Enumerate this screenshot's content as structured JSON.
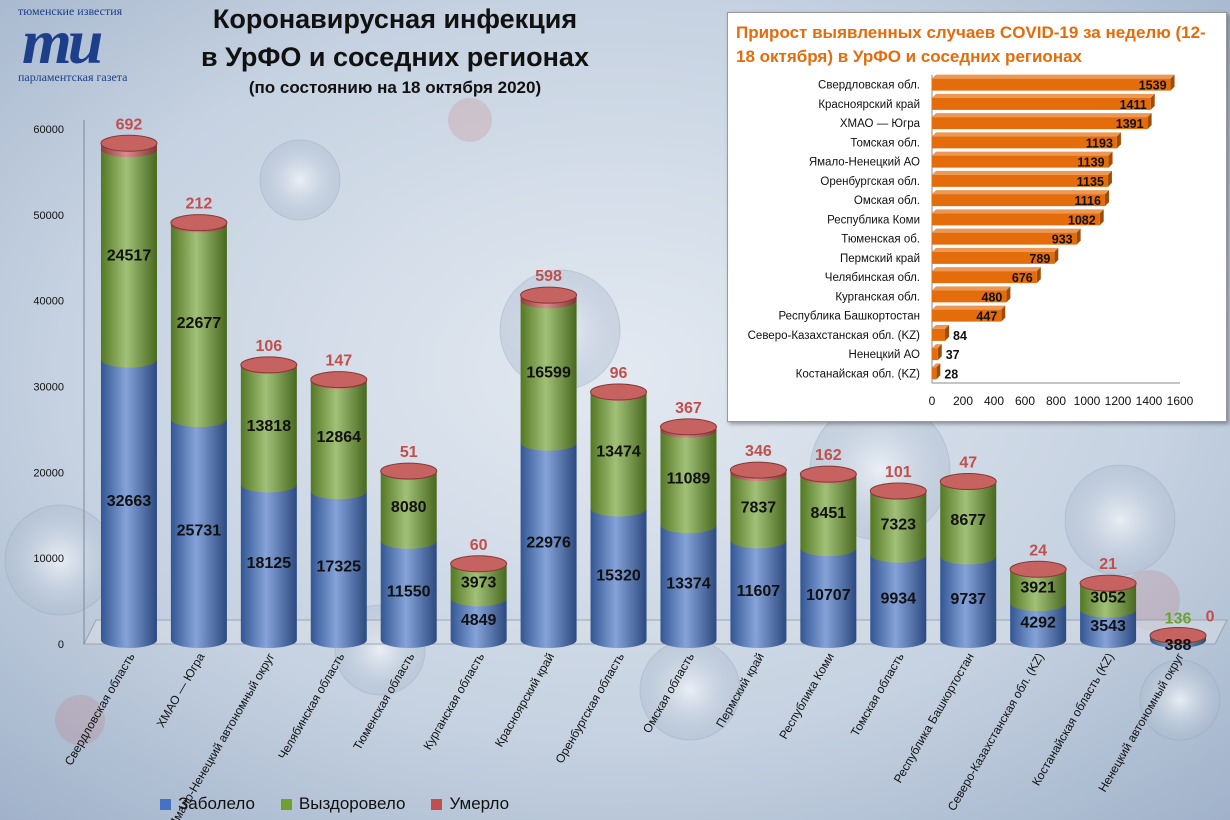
{
  "logo": {
    "top_text": "тюменские известия",
    "mark": "тu",
    "bottom_text": "парламентская газета"
  },
  "header": {
    "title_line1": "Коронавирусная инфекция",
    "title_line2": "в УрФО и соседних регионах",
    "subtitle": "(по состоянию на 18 октября 2020)"
  },
  "legend": {
    "items": [
      {
        "label": "Заболело",
        "color": "#4472c4"
      },
      {
        "label": "Выздоровело",
        "color": "#70a030"
      },
      {
        "label": "Умерло",
        "color": "#c0504d"
      }
    ]
  },
  "inset": {
    "title": "Прирост выявленных случаев COVID-19 за неделю (12-18 октября) в УрФО и соседних регионах"
  },
  "chart_data": [
    {
      "type": "bar",
      "stacked": true,
      "categories": [
        "Свердловская область",
        "ХМАО — Югра",
        "Ямало-Ненецкий автономный округ",
        "Челябинская область",
        "Тюменская область",
        "Курганская область",
        "Красноярский край",
        "Оренбургская область",
        "Омская область",
        "Пермский край",
        "Республика Коми",
        "Томская область",
        "Республика Башкортостан",
        "Северо-Казахстанская обл. (KZ)",
        "Костанайская область (KZ)",
        "Ненецкий автономный округ"
      ],
      "series": [
        {
          "name": "Заболело",
          "color": "#4472c4",
          "values": [
            32663,
            25731,
            18125,
            17325,
            11550,
            4849,
            22976,
            15320,
            13374,
            11607,
            10707,
            9934,
            9737,
            4292,
            3543,
            388
          ]
        },
        {
          "name": "Выздоровело",
          "color": "#70a030",
          "values": [
            24517,
            22677,
            13818,
            12864,
            8080,
            3973,
            16599,
            13474,
            11089,
            7837,
            8451,
            7323,
            8677,
            3921,
            3052,
            136
          ]
        },
        {
          "name": "Умерло",
          "color": "#c0504d",
          "values": [
            692,
            212,
            106,
            147,
            51,
            60,
            598,
            96,
            367,
            346,
            162,
            101,
            47,
            24,
            21,
            0
          ]
        }
      ],
      "ylim": [
        0,
        60000
      ],
      "yticks": [
        0,
        10000,
        20000,
        30000,
        40000,
        50000,
        60000
      ],
      "ytick_labels": [
        "0",
        "10000",
        "20000",
        "30000",
        "40000",
        "50000",
        "60000"
      ],
      "legend_position": "bottom",
      "grid": false
    },
    {
      "type": "bar",
      "orientation": "horizontal",
      "title": "Прирост выявленных случаев COVID-19 за неделю (12-18 октября) в УрФО и соседних регионах",
      "categories": [
        "Свердловская обл.",
        "Красноярский край",
        "ХМАО — Югра",
        "Томская обл.",
        "Ямало-Ненецкий АО",
        "Оренбургская обл.",
        "Омская обл.",
        "Республика Коми",
        "Тюменская об.",
        "Пермский край",
        "Челябинская обл.",
        "Курганская обл.",
        "Республика Башкортостан",
        "Северо-Казахстанская обл. (KZ)",
        "Ненецкий АО",
        "Костанайская обл. (KZ)"
      ],
      "values": [
        1539,
        1411,
        1391,
        1193,
        1139,
        1135,
        1116,
        1082,
        933,
        789,
        676,
        480,
        447,
        84,
        37,
        28
      ],
      "color": "#e46c0a",
      "xlim": [
        0,
        1600
      ],
      "xticks": [
        0,
        200,
        400,
        600,
        800,
        1000,
        1200,
        1400,
        1600
      ],
      "xtick_labels": [
        "0",
        "200",
        "400",
        "600",
        "800",
        "1000",
        "1200",
        "1400",
        "1600"
      ],
      "grid": false
    }
  ]
}
